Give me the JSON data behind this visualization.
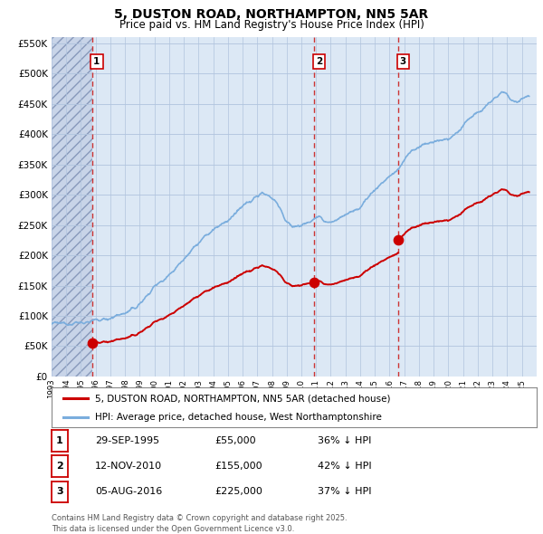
{
  "title": "5, DUSTON ROAD, NORTHAMPTON, NN5 5AR",
  "subtitle": "Price paid vs. HM Land Registry's House Price Index (HPI)",
  "hpi_label": "HPI: Average price, detached house, West Northamptonshire",
  "property_label": "5, DUSTON ROAD, NORTHAMPTON, NN5 5AR (detached house)",
  "footnote": "Contains HM Land Registry data © Crown copyright and database right 2025.\nThis data is licensed under the Open Government Licence v3.0.",
  "sale_events": [
    {
      "num": 1,
      "date": "29-SEP-1995",
      "price": 55000,
      "pct": "36%",
      "x_year": 1995.75
    },
    {
      "num": 2,
      "date": "12-NOV-2010",
      "price": 155000,
      "pct": "42%",
      "x_year": 2010.87
    },
    {
      "num": 3,
      "date": "05-AUG-2016",
      "price": 225000,
      "pct": "37%",
      "x_year": 2016.6
    }
  ],
  "ylim": [
    0,
    560000
  ],
  "yticks": [
    0,
    50000,
    100000,
    150000,
    200000,
    250000,
    300000,
    350000,
    400000,
    450000,
    500000,
    550000
  ],
  "xlim_start": 1993,
  "xlim_end": 2026,
  "bg_color": "#dce8f5",
  "grid_color": "#b0c4de",
  "hpi_color": "#7aaddd",
  "property_color": "#cc0000",
  "dashed_line_color": "#cc3333",
  "hatch_color": "#c8d4e8"
}
